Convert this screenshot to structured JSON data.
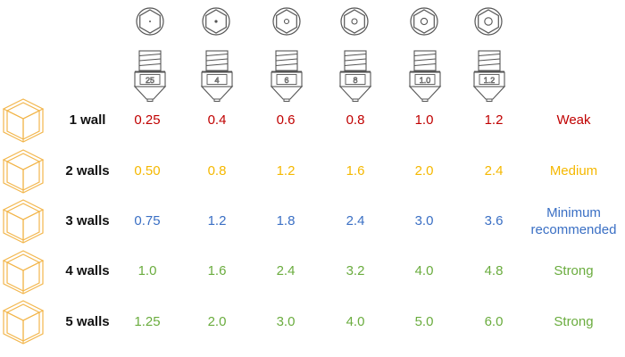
{
  "nozzles": [
    {
      "size_label": "25"
    },
    {
      "size_label": "4"
    },
    {
      "size_label": "6"
    },
    {
      "size_label": "8"
    },
    {
      "size_label": "1.0"
    },
    {
      "size_label": "1.2"
    }
  ],
  "rows": [
    {
      "label": "1 wall",
      "values": [
        "0.25",
        "0.4",
        "0.6",
        "0.8",
        "1.0",
        "1.2"
      ],
      "strength": "Weak",
      "color": "#c00000"
    },
    {
      "label": "2 walls",
      "values": [
        "0.50",
        "0.8",
        "1.2",
        "1.6",
        "2.0",
        "2.4"
      ],
      "strength": "Medium",
      "color": "#f5b800"
    },
    {
      "label": "3 walls",
      "values": [
        "0.75",
        "1.2",
        "1.8",
        "2.4",
        "3.0",
        "3.6"
      ],
      "strength": "Minimum recommended",
      "strength_lines": [
        "Minimum",
        "recommended"
      ],
      "color": "#3a6fc4"
    },
    {
      "label": "4 walls",
      "values": [
        "1.0",
        "1.6",
        "2.4",
        "3.2",
        "4.0",
        "4.8"
      ],
      "strength": "Strong",
      "color": "#6aac3e"
    },
    {
      "label": "5 walls",
      "values": [
        "1.25",
        "2.0",
        "3.0",
        "4.0",
        "5.0",
        "6.0"
      ],
      "strength": "Strong",
      "color": "#6aac3e"
    }
  ],
  "icons": {
    "nozzle_top": "nozzle-top-view-icon",
    "nozzle_side": "nozzle-side-view-icon",
    "wall_cube": "wall-cube-icon"
  },
  "colors": {
    "cube_outline": "#f2b64c",
    "nozzle_outline": "#555555",
    "label": "#111111"
  }
}
